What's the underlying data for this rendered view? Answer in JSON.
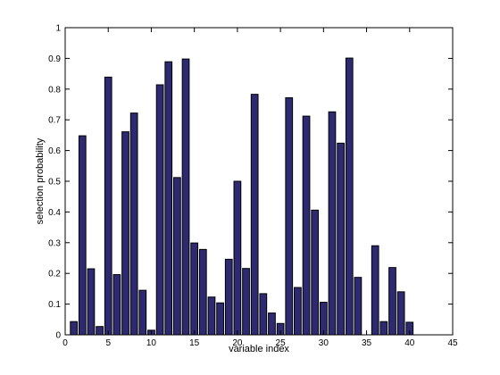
{
  "chart_data": {
    "type": "bar",
    "xlabel": "variable index",
    "ylabel": "selection probability",
    "xlim": [
      0,
      45
    ],
    "ylim": [
      0,
      1
    ],
    "x_ticks": [
      "0",
      "5",
      "10",
      "15",
      "20",
      "25",
      "30",
      "35",
      "40",
      "45"
    ],
    "y_ticks": [
      "0",
      "0.1",
      "0.2",
      "0.3",
      "0.4",
      "0.5",
      "0.6",
      "0.7",
      "0.8",
      "0.9",
      "1"
    ],
    "grid": false,
    "bar_color": "#2e2a72",
    "edge_color": "#000000",
    "x": [
      1,
      2,
      3,
      4,
      5,
      6,
      7,
      8,
      9,
      10,
      11,
      12,
      13,
      14,
      15,
      16,
      17,
      18,
      19,
      20,
      21,
      22,
      23,
      24,
      25,
      26,
      27,
      28,
      29,
      30,
      31,
      32,
      33,
      34,
      35,
      36,
      37,
      38,
      39,
      40
    ],
    "values": [
      0.043,
      0.648,
      0.215,
      0.027,
      0.839,
      0.196,
      0.661,
      0.722,
      0.145,
      0.015,
      0.814,
      0.889,
      0.512,
      0.898,
      0.299,
      0.278,
      0.123,
      0.104,
      0.246,
      0.5,
      0.216,
      0.783,
      0.134,
      0.071,
      0.037,
      0.772,
      0.154,
      0.712,
      0.406,
      0.106,
      0.726,
      0.624,
      0.901,
      0.187,
      0.0,
      0.29,
      0.043,
      0.219,
      0.14,
      0.041
    ]
  }
}
